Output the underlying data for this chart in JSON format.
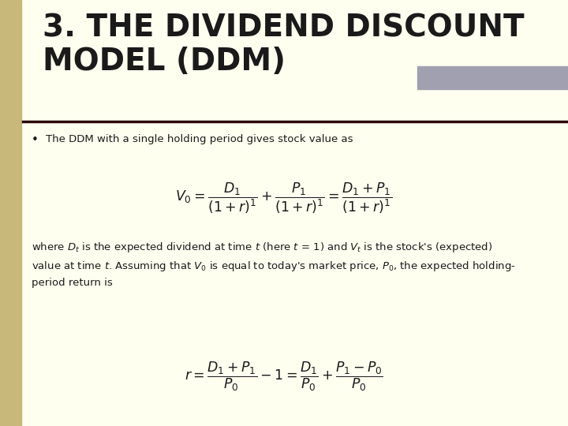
{
  "title": "3. THE DIVIDEND DISCOUNT\nMODEL (DDM)",
  "title_fontsize": 28,
  "title_color": "#1a1a1a",
  "bg_color": "#fffff0",
  "left_bar_color": "#c8b87a",
  "right_bar_color": "#a0a0b0",
  "separator_color": "#2a0a0a",
  "bullet_text": "The DDM with a single holding period gives stock value as",
  "body_text": "where $D_t$ is the expected dividend at time $t$ (here $t$ = 1) and $V_t$ is the stock's (expected)\nvalue at time $t$. Assuming that $V_0$ is equal to today's market price, $P_0$, the expected holding-\nperiod return is",
  "formula1": "$V_0 = \\dfrac{D_1}{(1+r)^1} + \\dfrac{P_1}{(1+r)^1} = \\dfrac{D_1 + P_1}{(1+r)^1}$",
  "formula2": "$r = \\dfrac{D_1 + P_1}{P_0} - 1 = \\dfrac{D_1}{P_0} + \\dfrac{P_1 - P_0}{P_0}$"
}
